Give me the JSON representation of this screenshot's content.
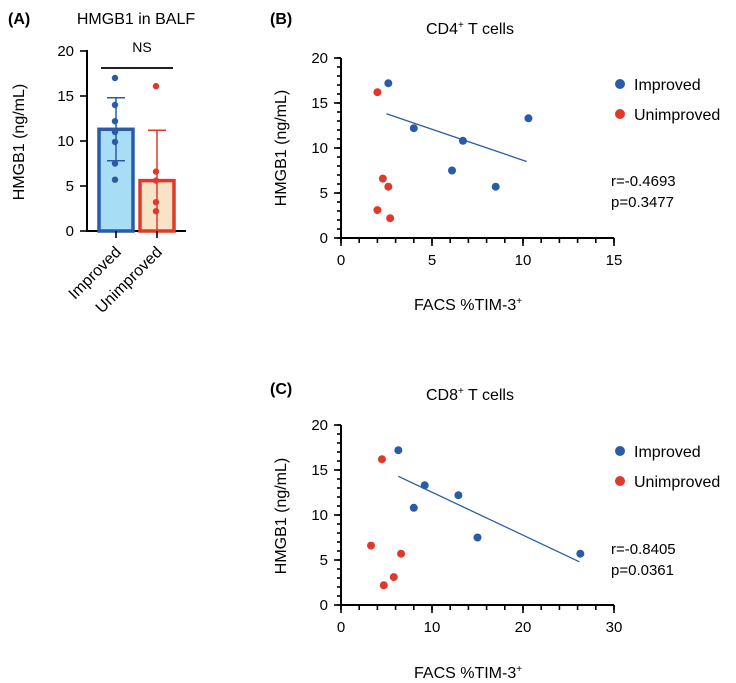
{
  "colors": {
    "improved": "#2a5ba8",
    "unimproved": "#e0392b",
    "bar_improved": "#a8def5",
    "bar_unimproved": "#f8e3c6",
    "regression": "#2a5ba8"
  },
  "chart_data": [
    {
      "type": "bar",
      "panel": "(A)",
      "title": "HMGB1 in BALF",
      "ylabel": "HMGB1 (ng/mL)",
      "ylim": [
        0,
        20
      ],
      "yticks": [
        "0",
        "5",
        "10",
        "15",
        "20"
      ],
      "categories": [
        "Improved",
        "Unimproved"
      ],
      "values": [
        11.3,
        5.6
      ],
      "sd": [
        3.5,
        5.6
      ],
      "points": [
        [
          17.0,
          14.0,
          12.2,
          11.0,
          9.9,
          7.5,
          5.7
        ],
        [
          16.1,
          6.6,
          5.6,
          3.2,
          2.2
        ]
      ],
      "significance": "NS"
    },
    {
      "type": "scatter",
      "panel": "(B)",
      "title_main": "CD4",
      "title_sup": "+",
      "title_rest": " T cells",
      "xlabel_main": "FACS  %TIM-3",
      "xlabel_sup": "+",
      "ylabel": "HMGB1 (ng/mL)",
      "xlim": [
        0,
        15
      ],
      "ylim": [
        0,
        20
      ],
      "xticks": [
        "0",
        "5",
        "10",
        "15"
      ],
      "yticks": [
        "0",
        "5",
        "10",
        "15",
        "20"
      ],
      "series": [
        {
          "name": "Improved",
          "x": [
            2.6,
            4.0,
            6.7,
            6.1,
            8.5,
            10.3
          ],
          "y": [
            17.2,
            12.2,
            10.8,
            7.5,
            5.7,
            13.3
          ]
        },
        {
          "name": "Unimproved",
          "x": [
            2.0,
            2.3,
            2.6,
            2.0,
            2.7
          ],
          "y": [
            16.2,
            6.6,
            5.7,
            3.1,
            2.2
          ]
        }
      ],
      "regression": {
        "x": [
          2.5,
          10.2
        ],
        "y": [
          13.8,
          8.5
        ]
      },
      "r_text": "r=-0.4693",
      "p_text": "p=0.3477"
    },
    {
      "type": "scatter",
      "panel": "(C)",
      "title_main": "CD8",
      "title_sup": "+",
      "title_rest": " T cells",
      "xlabel_main": "FACS  %TIM-3",
      "xlabel_sup": "+",
      "ylabel": "HMGB1 (ng/mL)",
      "xlim": [
        0,
        30
      ],
      "ylim": [
        0,
        20
      ],
      "xticks": [
        "0",
        "10",
        "20",
        "30"
      ],
      "yticks": [
        "0",
        "5",
        "10",
        "15",
        "20"
      ],
      "series": [
        {
          "name": "Improved",
          "x": [
            6.3,
            9.2,
            8.0,
            12.9,
            15.0,
            26.3
          ],
          "y": [
            17.2,
            13.3,
            10.8,
            12.2,
            7.5,
            5.7
          ]
        },
        {
          "name": "Unimproved",
          "x": [
            4.5,
            3.3,
            6.6,
            5.8,
            4.7
          ],
          "y": [
            16.2,
            6.6,
            5.7,
            3.1,
            2.2
          ]
        }
      ],
      "regression": {
        "x": [
          6.3,
          26.2
        ],
        "y": [
          14.3,
          4.8
        ]
      },
      "r_text": "r=-0.8405",
      "p_text": "p=0.0361"
    }
  ]
}
